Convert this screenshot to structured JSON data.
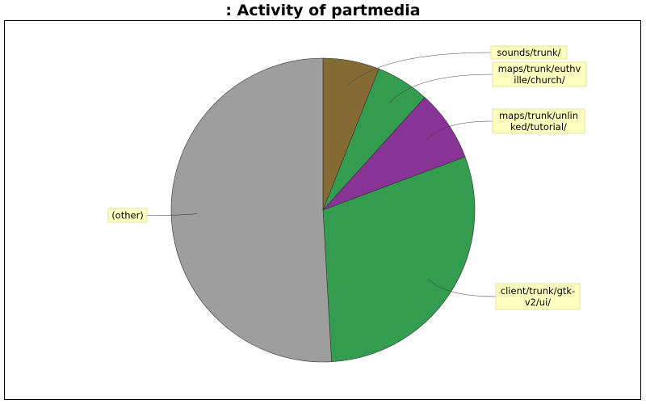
{
  "chart_data": {
    "type": "pie",
    "title": ": Activity of partmedia",
    "start_angle_deg": 90,
    "direction": "clockwise",
    "legend": "none",
    "slices": [
      {
        "label": "sounds/trunk/",
        "value": 6.0,
        "color": "#856b33"
      },
      {
        "label": "maps/trunk/euthville/church/",
        "value": 5.7,
        "color": "#339c4e"
      },
      {
        "label": "maps/trunk/unlinked/tutorial/",
        "value": 7.6,
        "color": "#883396"
      },
      {
        "label": "client/trunk/gtk-v2/ui/",
        "value": 29.8,
        "color": "#339c4e"
      },
      {
        "label": "(other)",
        "value": 50.9,
        "color": "#9e9e9e"
      }
    ],
    "label_lines": [
      [
        "sounds/trunk/"
      ],
      [
        "maps/trunk/euthv",
        "ille/church/"
      ],
      [
        "maps/trunk/unlin",
        "ked/tutorial/"
      ],
      [
        "client/trunk/gtk-",
        "v2/ui/"
      ],
      [
        "(other)"
      ]
    ],
    "label_style": {
      "background": "#ffffc0",
      "border": "#e6e6a0"
    }
  }
}
